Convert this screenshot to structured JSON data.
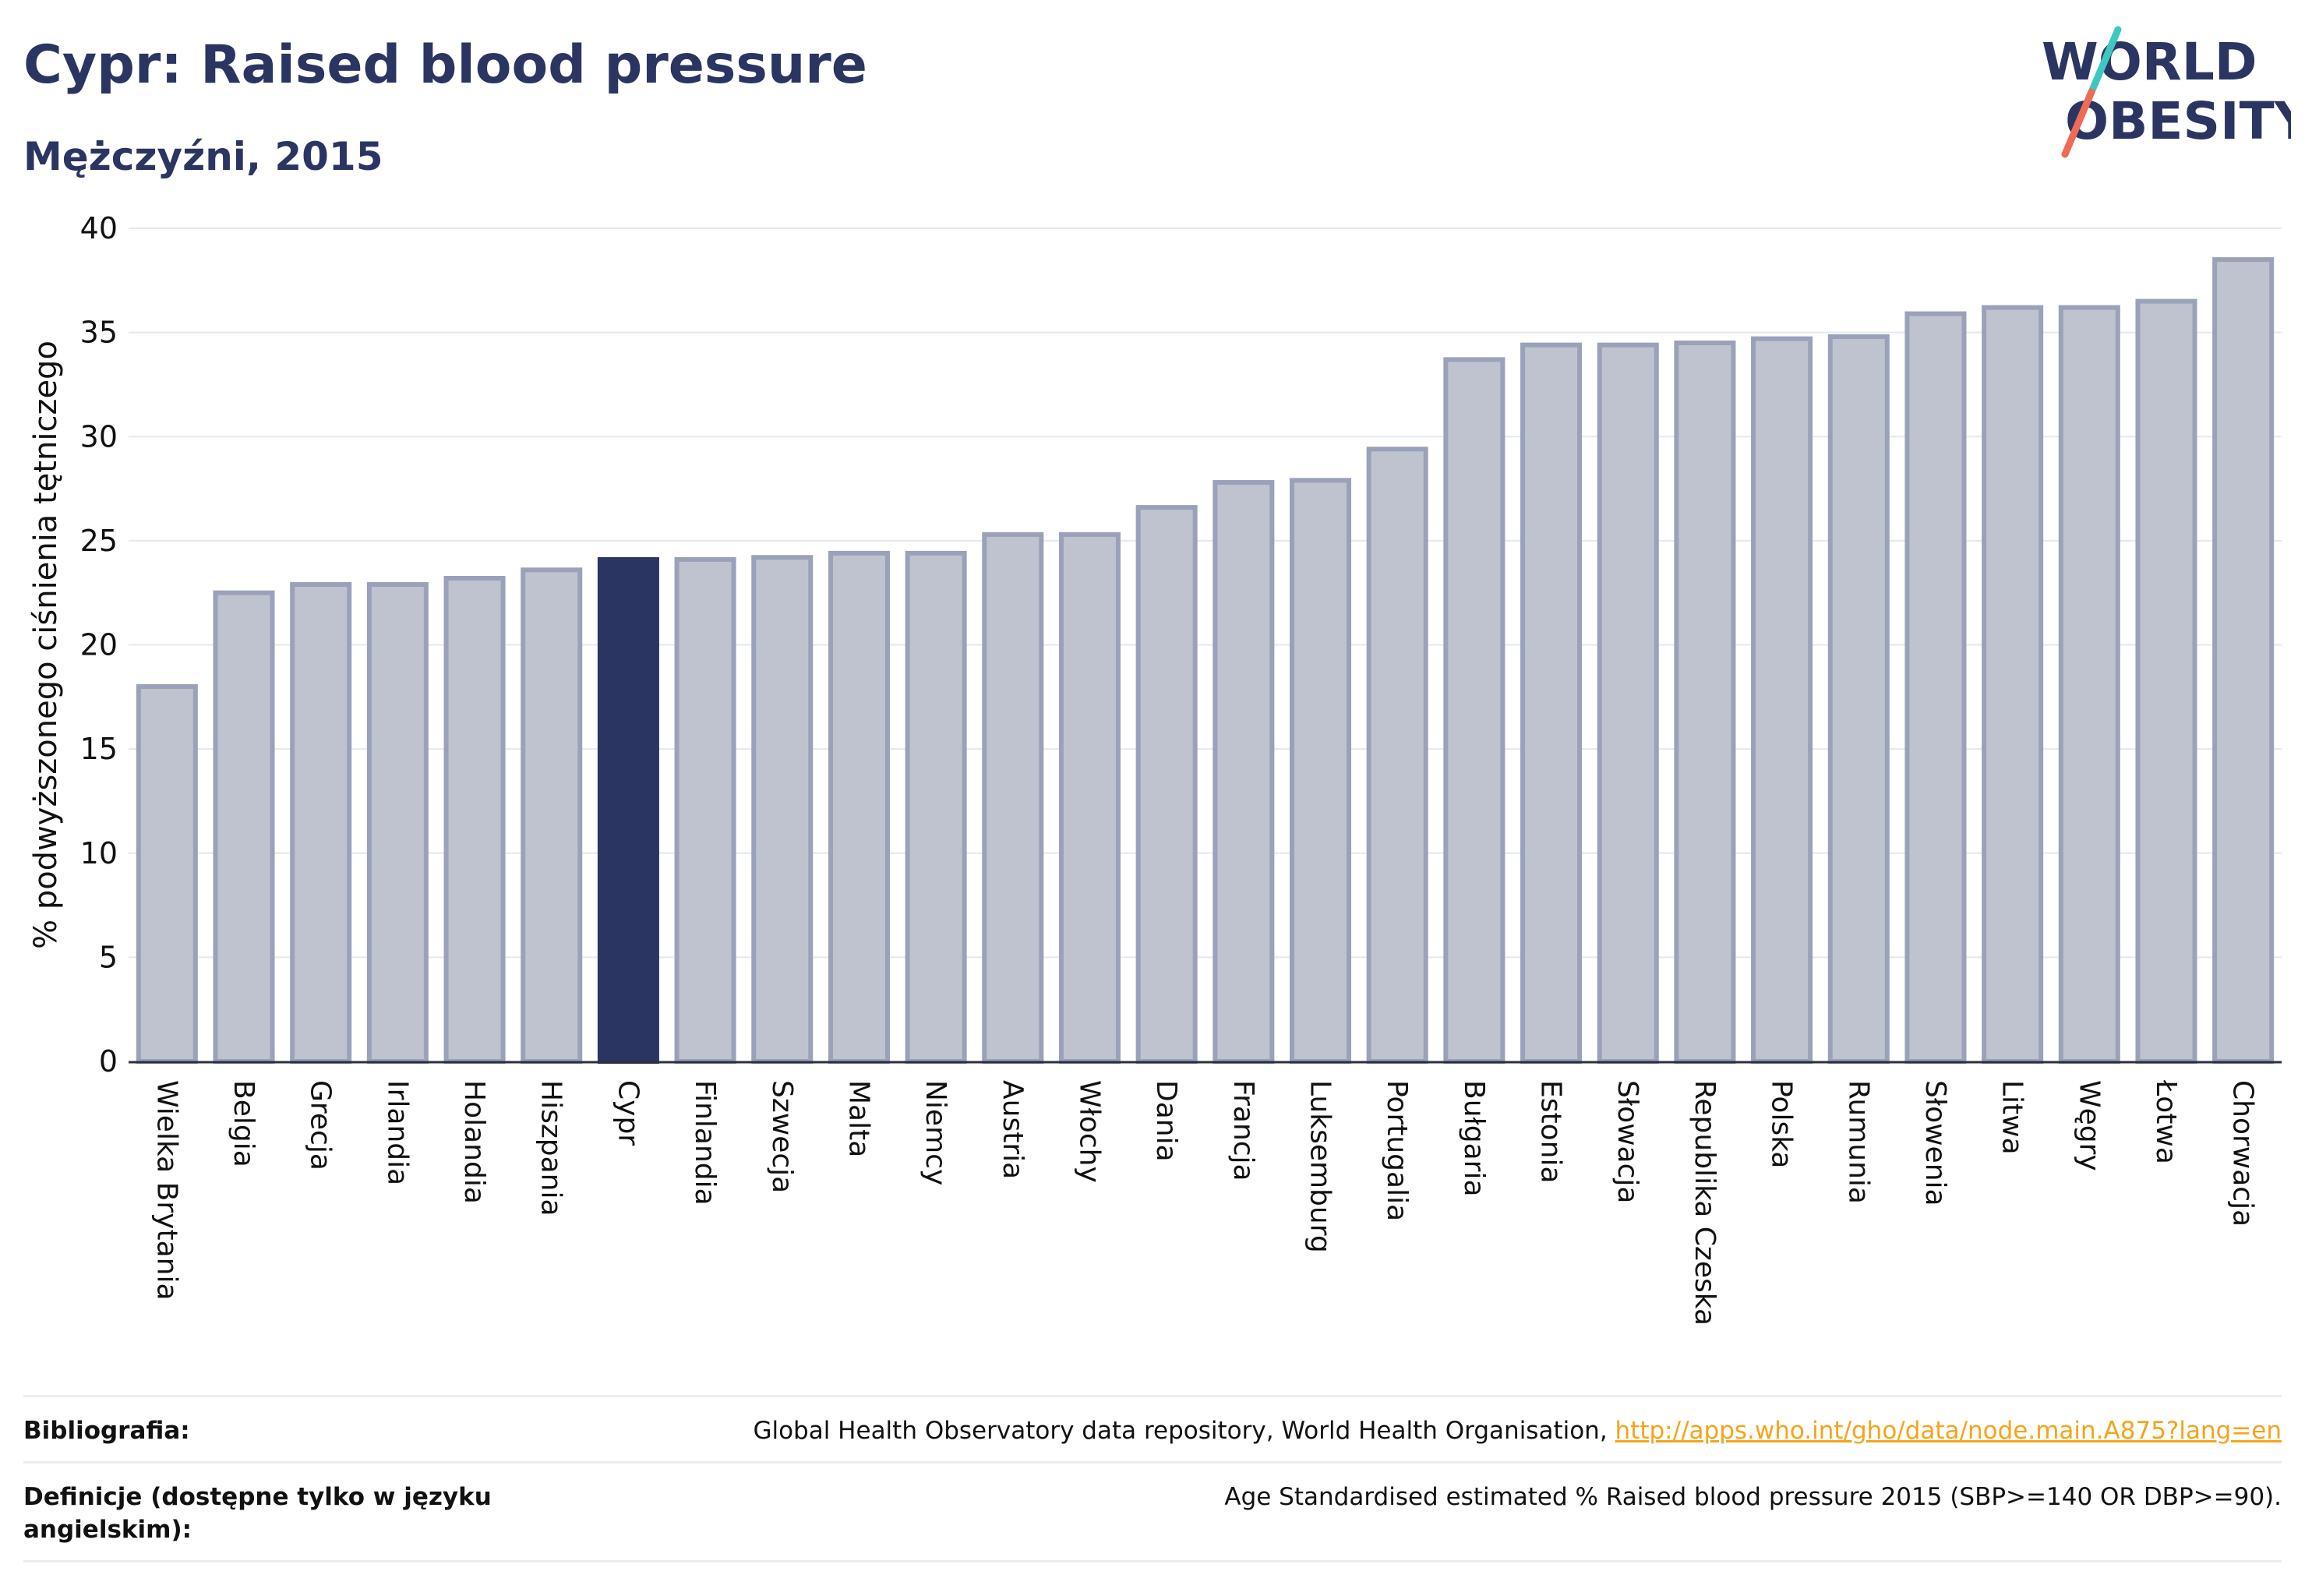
{
  "header": {
    "title": "Cypr: Raised blood pressure",
    "subtitle": "Mężczyźni, 2015"
  },
  "logo": {
    "line1": "WORLD",
    "line2": "OBESITY",
    "slash_colors": [
      "#3ec7c2",
      "#ee6b56"
    ]
  },
  "colors": {
    "bar_default": "#bfc3d0",
    "bar_border": "#9aa1b9",
    "bar_highlight": "#2b3561",
    "text_dark": "#2b3561",
    "link": "#f4a41c"
  },
  "chart_data": {
    "type": "bar",
    "title": "",
    "ylabel": "% podwyższonego ciśnienia tętniczego",
    "xlabel": "",
    "ylim": [
      0,
      40
    ],
    "yticks": [
      0,
      5,
      10,
      15,
      20,
      25,
      30,
      35,
      40
    ],
    "grid": true,
    "highlight": "Cypr",
    "categories": [
      "Wielka Brytania",
      "Belgia",
      "Grecja",
      "Irlandia",
      "Holandia",
      "Hiszpania",
      "Cypr",
      "Finlandia",
      "Szwecja",
      "Malta",
      "Niemcy",
      "Austria",
      "Włochy",
      "Dania",
      "Francja",
      "Luksemburg",
      "Portugalia",
      "Bułgaria",
      "Estonia",
      "Słowacja",
      "Republika Czeska",
      "Polska",
      "Rumunia",
      "Słowenia",
      "Litwa",
      "Węgry",
      "Łotwa",
      "Chorwacja"
    ],
    "values": [
      18.0,
      22.5,
      22.9,
      22.9,
      23.2,
      23.6,
      24.1,
      24.1,
      24.2,
      24.4,
      24.4,
      25.3,
      25.3,
      26.6,
      27.8,
      27.9,
      29.4,
      33.7,
      34.4,
      34.4,
      34.5,
      34.7,
      34.8,
      35.9,
      36.2,
      36.2,
      36.5,
      38.5
    ]
  },
  "footer": {
    "bibliography_label": "Bibliografia:",
    "bibliography_text": "Global Health Observatory data repository, World Health Organisation, ",
    "bibliography_link": "http://apps.who.int/gho/data/node.main.A875?lang=en",
    "definitions_label": "Definicje (dostępne tylko w języku angielskim):",
    "definitions_text": "Age Standardised estimated % Raised blood pressure 2015 (SBP>=140 OR DBP>=90)."
  }
}
